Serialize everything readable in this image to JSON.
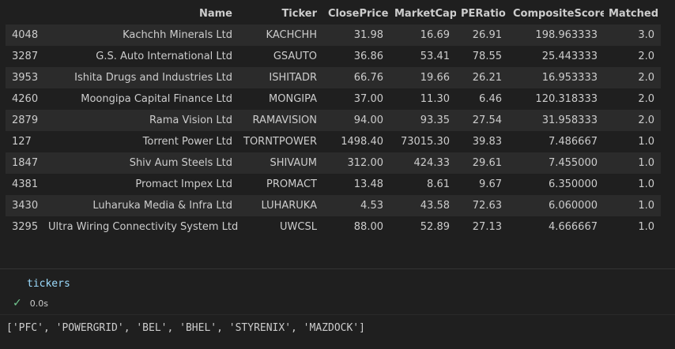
{
  "dataframe": {
    "columns": [
      "",
      "Name",
      "Ticker",
      "ClosePrice",
      "MarketCap",
      "PERatio",
      "CompositeScore",
      "Matched"
    ],
    "rows": [
      [
        "4048",
        "Kachchh Minerals Ltd",
        "KACHCHH",
        "31.98",
        "16.69",
        "26.91",
        "198.963333",
        "3.0"
      ],
      [
        "3287",
        "G.S. Auto International Ltd",
        "GSAUTO",
        "36.86",
        "53.41",
        "78.55",
        "25.443333",
        "2.0"
      ],
      [
        "3953",
        "Ishita Drugs and Industries Ltd",
        "ISHITADR",
        "66.76",
        "19.66",
        "26.21",
        "16.953333",
        "2.0"
      ],
      [
        "4260",
        "Moongipa Capital Finance Ltd",
        "MONGIPA",
        "37.00",
        "11.30",
        "6.46",
        "120.318333",
        "2.0"
      ],
      [
        "2879",
        "Rama Vision Ltd",
        "RAMAVISION",
        "94.00",
        "93.35",
        "27.54",
        "31.958333",
        "2.0"
      ],
      [
        "127",
        "Torrent Power Ltd",
        "TORNTPOWER",
        "1498.40",
        "73015.30",
        "39.83",
        "7.486667",
        "1.0"
      ],
      [
        "1847",
        "Shiv Aum Steels Ltd",
        "SHIVAUM",
        "312.00",
        "424.33",
        "29.61",
        "7.455000",
        "1.0"
      ],
      [
        "4381",
        "Promact Impex Ltd",
        "PROMACT",
        "13.48",
        "8.61",
        "9.67",
        "6.350000",
        "1.0"
      ],
      [
        "3430",
        "Luharuka Media & Infra Ltd",
        "LUHARUKA",
        "4.53",
        "43.58",
        "72.63",
        "6.060000",
        "1.0"
      ],
      [
        "3295",
        "Ultra Wiring Connectivity System Ltd",
        "UWCSL",
        "88.00",
        "52.89",
        "27.13",
        "4.666667",
        "1.0"
      ]
    ]
  },
  "code_cell": {
    "source": "tickers",
    "status_icon": "check-icon",
    "exec_time": "0.0s",
    "output": "['PFC', 'POWERGRID', 'BEL', 'BHEL', 'STYRENIX', 'MAZDOCK']"
  }
}
